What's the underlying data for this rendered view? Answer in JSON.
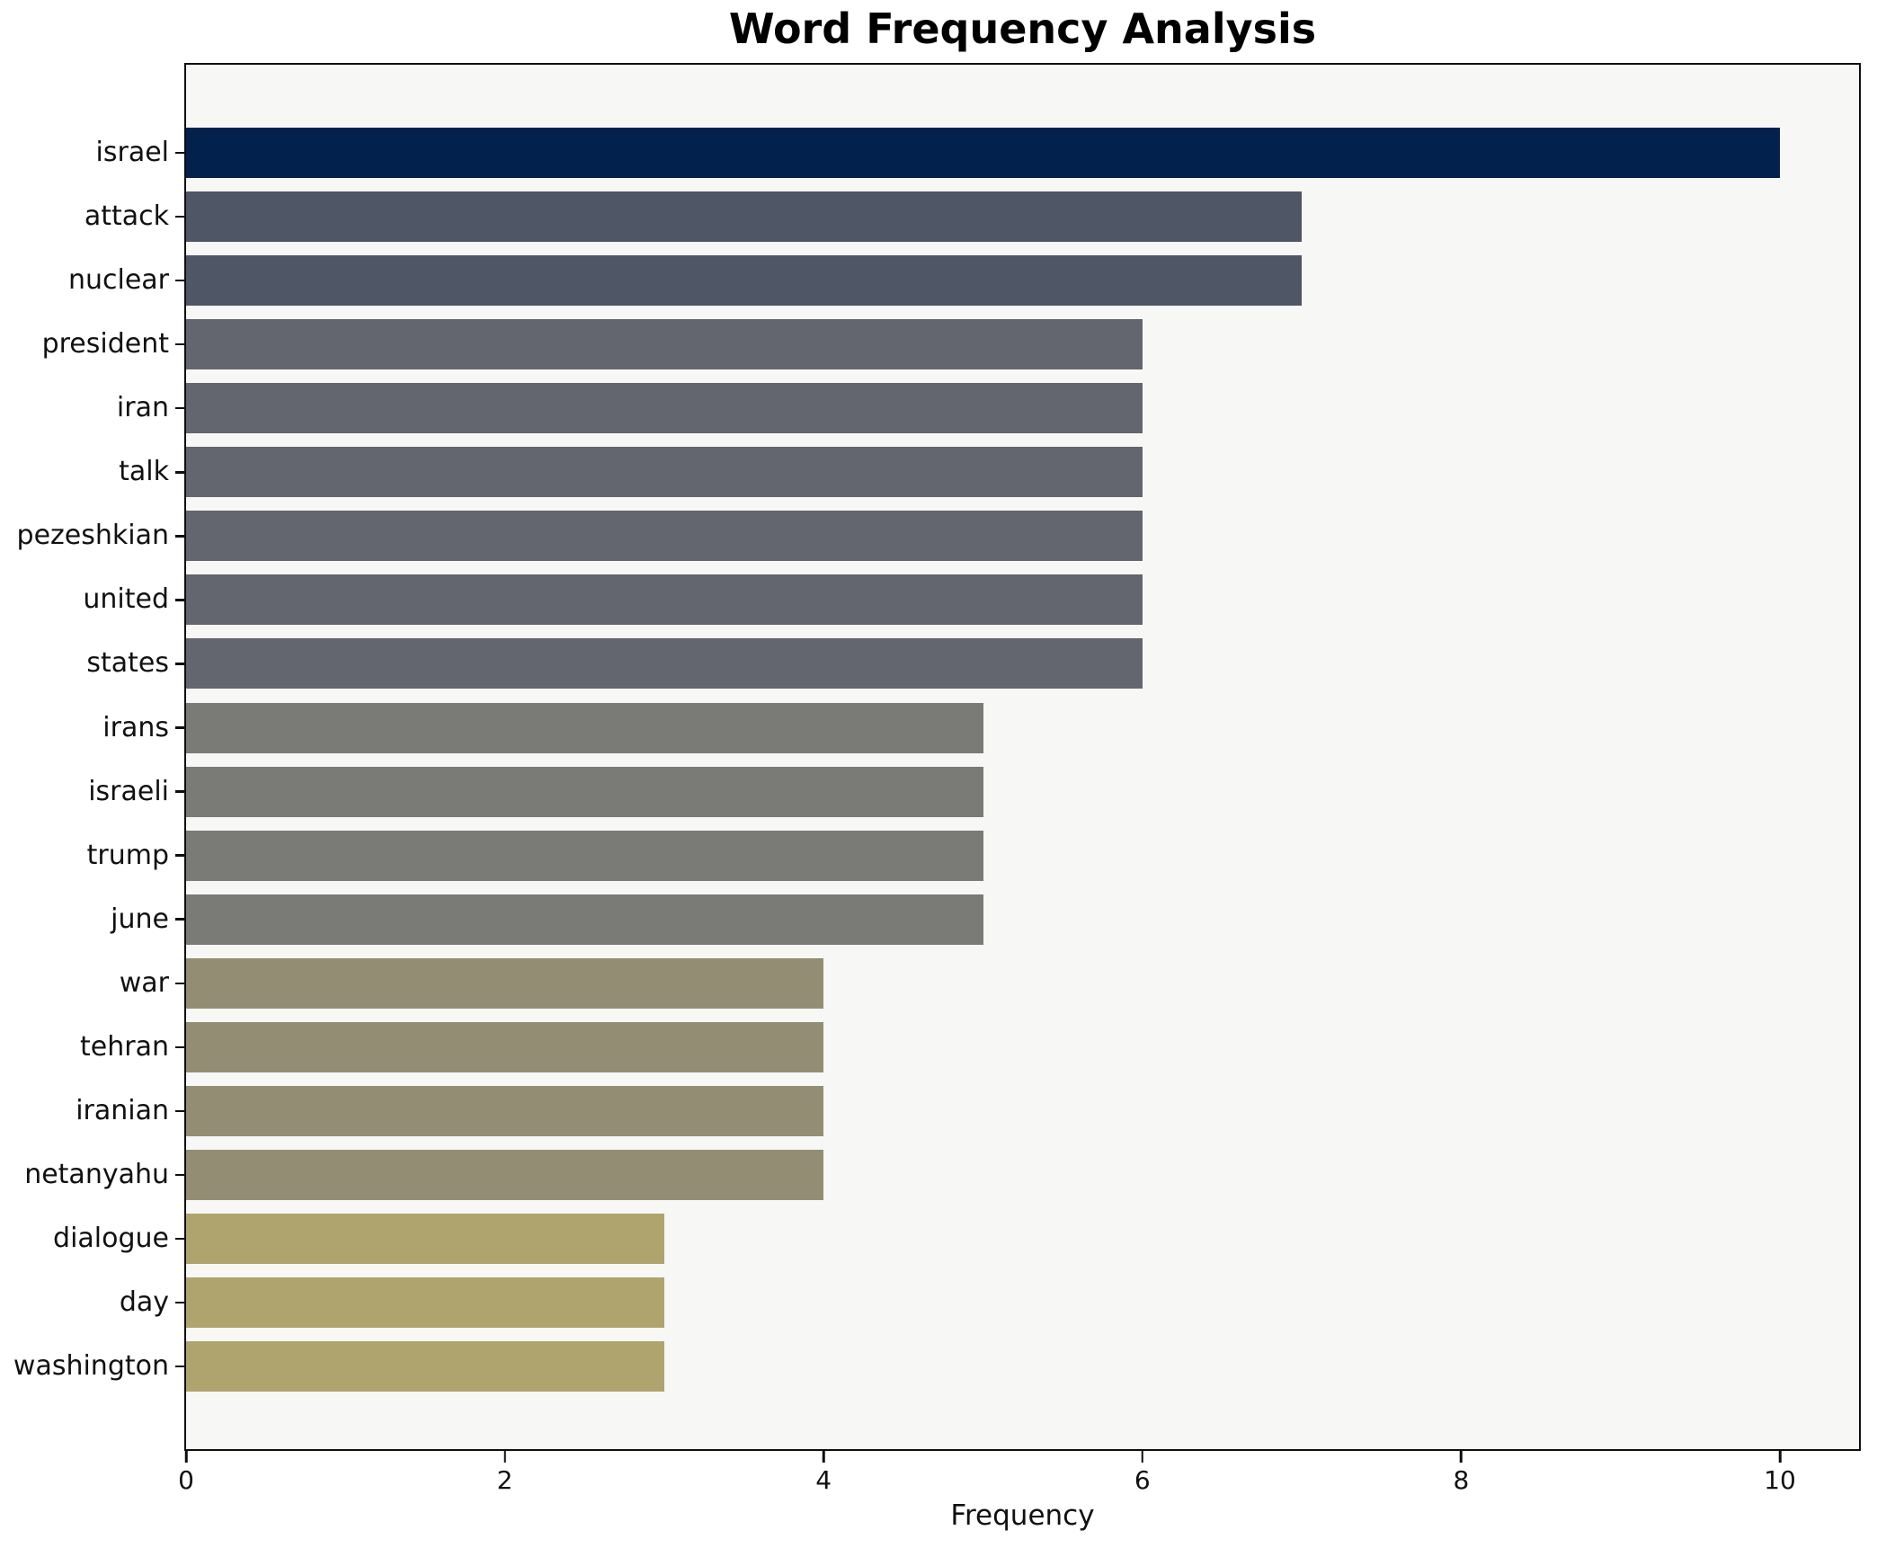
{
  "title": "Word Frequency Analysis",
  "axis": {
    "xlabel": "Frequency"
  },
  "colors": {
    "plot_background": "#f7f7f6",
    "figure_background": "#ffffff",
    "spine": "#0e0e0e",
    "text": "#111111"
  },
  "chart_data": {
    "type": "bar",
    "orientation": "horizontal",
    "title": "Word Frequency Analysis",
    "xlabel": "Frequency",
    "ylabel": "",
    "xlim": [
      0,
      10.5
    ],
    "xticks": [
      0,
      2,
      4,
      6,
      8,
      10
    ],
    "grid": false,
    "legend": false,
    "categories": [
      "israel",
      "attack",
      "nuclear",
      "president",
      "iran",
      "talk",
      "pezeshkian",
      "united",
      "states",
      "irans",
      "israeli",
      "trump",
      "june",
      "war",
      "tehran",
      "iranian",
      "netanyahu",
      "dialogue",
      "day",
      "washington"
    ],
    "values": [
      10,
      7,
      7,
      6,
      6,
      6,
      6,
      6,
      6,
      5,
      5,
      5,
      5,
      4,
      4,
      4,
      4,
      3,
      3,
      3
    ],
    "bar_colors": [
      "#02224d",
      "#4f5666",
      "#4f5666",
      "#63666e",
      "#63666e",
      "#63666e",
      "#63666e",
      "#63666e",
      "#63666e",
      "#7a7a76",
      "#7a7a76",
      "#7a7a76",
      "#7a7a76",
      "#938d73",
      "#938d73",
      "#938d73",
      "#938d73",
      "#b0a46e",
      "#b0a46e",
      "#b0a46e"
    ]
  }
}
